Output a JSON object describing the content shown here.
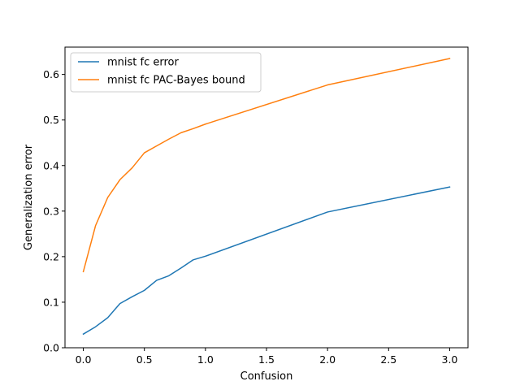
{
  "chart_data": {
    "type": "line",
    "xlabel": "Confusion",
    "ylabel": "Generalization error",
    "xlim": [
      -0.15,
      3.15
    ],
    "ylim": [
      0.0,
      0.66
    ],
    "xticks": [
      0.0,
      0.5,
      1.0,
      1.5,
      2.0,
      2.5,
      3.0
    ],
    "xtick_labels": [
      "0.0",
      "0.5",
      "1.0",
      "1.5",
      "2.0",
      "2.5",
      "3.0"
    ],
    "yticks": [
      0.0,
      0.1,
      0.2,
      0.3,
      0.4,
      0.5,
      0.6
    ],
    "ytick_labels": [
      "0.0",
      "0.1",
      "0.2",
      "0.3",
      "0.4",
      "0.5",
      "0.6"
    ],
    "grid": false,
    "legend_position": "top-left",
    "series": [
      {
        "name": "mnist fc error",
        "color": "#1f77b4",
        "x": [
          0.0,
          0.1,
          0.2,
          0.3,
          0.4,
          0.5,
          0.6,
          0.7,
          0.8,
          0.9,
          1.0,
          2.0,
          3.0
        ],
        "y": [
          0.03,
          0.046,
          0.066,
          0.097,
          0.112,
          0.126,
          0.148,
          0.158,
          0.175,
          0.193,
          0.201,
          0.298,
          0.353
        ]
      },
      {
        "name": "mnist fc PAC-Bayes bound",
        "color": "#ff7f0e",
        "x": [
          0.0,
          0.1,
          0.2,
          0.3,
          0.4,
          0.5,
          0.6,
          0.7,
          0.8,
          0.9,
          1.0,
          2.0,
          3.0
        ],
        "y": [
          0.167,
          0.268,
          0.33,
          0.369,
          0.395,
          0.428,
          0.443,
          0.458,
          0.472,
          0.481,
          0.491,
          0.577,
          0.635
        ]
      }
    ]
  }
}
